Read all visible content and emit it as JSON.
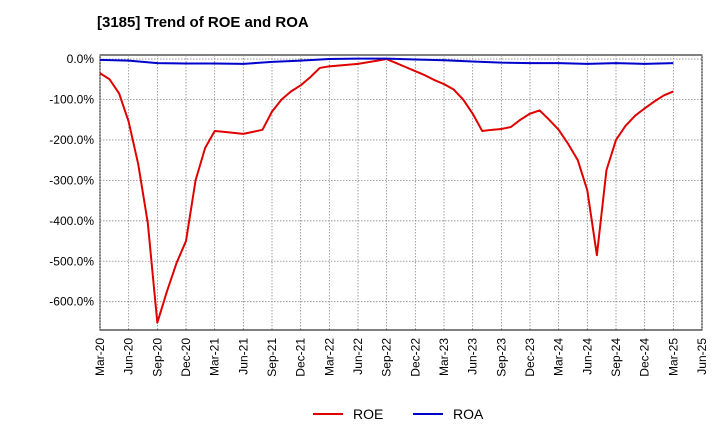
{
  "chart_data": {
    "type": "line",
    "title": "[3185]  Trend of ROE and ROA",
    "xlabel": "",
    "ylabel": "",
    "ylim": [
      -670,
      10
    ],
    "y_ticks": [
      0,
      -100,
      -200,
      -300,
      -400,
      -500,
      -600
    ],
    "y_tick_labels": [
      "0.0%",
      "-100.0%",
      "-200.0%",
      "-300.0%",
      "-400.0%",
      "-500.0%",
      "-600.0%"
    ],
    "x_ticks": [
      "Mar-20",
      "Jun-20",
      "Sep-20",
      "Dec-20",
      "Mar-21",
      "Jun-21",
      "Sep-21",
      "Dec-21",
      "Mar-22",
      "Jun-22",
      "Sep-22",
      "Dec-22",
      "Mar-23",
      "Jun-23",
      "Sep-23",
      "Dec-23",
      "Mar-24",
      "Jun-24",
      "Sep-24",
      "Dec-24",
      "Mar-25",
      "Jun-25"
    ],
    "x_range_months": [
      0,
      63
    ],
    "grid": true,
    "legend_position": "bottom-center",
    "series": [
      {
        "name": "ROE",
        "color": "#e00000",
        "x": [
          0,
          1,
          2,
          3,
          4,
          5,
          6,
          7,
          8,
          9,
          10,
          11,
          12,
          13,
          15,
          16,
          17,
          18,
          19,
          20,
          21,
          22,
          23,
          24,
          27,
          30,
          31,
          32,
          33,
          34,
          35,
          36,
          37,
          38,
          39,
          40,
          41,
          42,
          43,
          44,
          45,
          46,
          47,
          48,
          49,
          50,
          51,
          52,
          53,
          54,
          55,
          56,
          57,
          58,
          59,
          60
        ],
        "values": [
          -35,
          -50,
          -85,
          -155,
          -260,
          -405,
          -652,
          -575,
          -505,
          -450,
          -300,
          -220,
          -178,
          -180,
          -185,
          -180,
          -175,
          -130,
          -100,
          -80,
          -65,
          -45,
          -22,
          -18,
          -12,
          0,
          -10,
          -20,
          -30,
          -40,
          -52,
          -62,
          -75,
          -100,
          -135,
          -178,
          -175,
          -173,
          -168,
          -150,
          -135,
          -127,
          -150,
          -175,
          -210,
          -250,
          -325,
          -485,
          -275,
          -200,
          -165,
          -140,
          -122,
          -105,
          -90,
          -80
        ],
        "visible_through_index": 58
      },
      {
        "name": "ROA",
        "color": "#0000cc",
        "x": [
          0,
          3,
          6,
          9,
          12,
          15,
          18,
          21,
          24,
          27,
          30,
          33,
          36,
          39,
          42,
          45,
          48,
          51,
          54,
          57,
          60
        ],
        "values": [
          -2,
          -4,
          -10,
          -11,
          -11,
          -12,
          -7,
          -4,
          0,
          1,
          1,
          -1,
          -3,
          -6,
          -9,
          -10,
          -10,
          -12,
          -10,
          -12,
          -10
        ]
      }
    ]
  }
}
